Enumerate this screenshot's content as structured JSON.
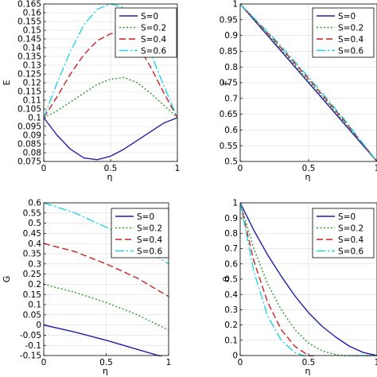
{
  "chart_data": [
    {
      "id": "E",
      "type": "line",
      "xlabel": "η",
      "ylabel": "E",
      "xlim": [
        0,
        1
      ],
      "ylim": [
        0.075,
        0.165
      ],
      "xticks": [
        0,
        0.5,
        1
      ],
      "xtick_labels": [
        "0",
        "0.5",
        "1"
      ],
      "yticks": [
        0.075,
        0.08,
        0.085,
        0.09,
        0.095,
        0.1,
        0.105,
        0.11,
        0.115,
        0.12,
        0.125,
        0.13,
        0.135,
        0.14,
        0.145,
        0.15,
        0.155,
        0.16,
        0.165
      ],
      "ytick_labels": [
        "0.075",
        "0.08",
        "0.085",
        "0.09",
        "0.095",
        "0.1",
        "0.105",
        "0.11",
        "0.115",
        "0.12",
        "0.125",
        "0.13",
        "0.135",
        "0.14",
        "0.145",
        "0.15",
        "0.155",
        "0.16",
        "0.165"
      ],
      "grid": true,
      "legend": "top-right",
      "x": [
        0,
        0.1,
        0.2,
        0.3,
        0.4,
        0.5,
        0.6,
        0.7,
        0.8,
        0.9,
        1
      ],
      "series": [
        {
          "name": "S=0",
          "values": [
            0.1,
            0.09,
            0.082,
            0.077,
            0.076,
            0.078,
            0.082,
            0.087,
            0.092,
            0.097,
            0.1
          ]
        },
        {
          "name": "S=0.2",
          "values": [
            0.1,
            0.104,
            0.109,
            0.114,
            0.119,
            0.122,
            0.123,
            0.12,
            0.114,
            0.107,
            0.1
          ]
        },
        {
          "name": "S=0.4",
          "values": [
            0.1,
            0.112,
            0.125,
            0.136,
            0.144,
            0.148,
            0.149,
            0.142,
            0.129,
            0.114,
            0.1
          ]
        },
        {
          "name": "S=0.6",
          "values": [
            0.1,
            0.12,
            0.138,
            0.153,
            0.162,
            0.165,
            0.163,
            0.154,
            0.137,
            0.118,
            0.1
          ]
        }
      ]
    },
    {
      "id": "F",
      "type": "line",
      "xlabel": "η",
      "ylabel": "F",
      "xlim": [
        0,
        1
      ],
      "ylim": [
        0.5,
        1
      ],
      "xticks": [
        0,
        0.5,
        1
      ],
      "xtick_labels": [
        "0",
        "0.5",
        "1"
      ],
      "yticks": [
        0.5,
        0.55,
        0.6,
        0.65,
        0.7,
        0.75,
        0.8,
        0.85,
        0.9,
        0.95,
        1
      ],
      "ytick_labels": [
        "0.5",
        "0.55",
        "0.6",
        "0.65",
        "0.7",
        "0.75",
        "0.8",
        "0.85",
        "0.9",
        "0.95",
        "1"
      ],
      "grid": true,
      "legend": "top-right",
      "x": [
        0,
        0.25,
        0.5,
        0.75,
        1
      ],
      "series": [
        {
          "name": "S=0",
          "values": [
            1,
            0.875,
            0.75,
            0.625,
            0.5
          ]
        },
        {
          "name": "S=0.2",
          "values": [
            1,
            0.88,
            0.756,
            0.63,
            0.5
          ]
        },
        {
          "name": "S=0.4",
          "values": [
            1,
            0.885,
            0.762,
            0.635,
            0.5
          ]
        },
        {
          "name": "S=0.6",
          "values": [
            1,
            0.89,
            0.768,
            0.64,
            0.5
          ]
        }
      ]
    },
    {
      "id": "G",
      "type": "line",
      "xlabel": "η",
      "ylabel": "G",
      "xlim": [
        0,
        1
      ],
      "ylim": [
        -0.15,
        0.6
      ],
      "xticks": [
        0,
        0.5,
        1
      ],
      "xtick_labels": [
        "0",
        "0.5",
        "1"
      ],
      "yticks": [
        -0.15,
        -0.1,
        -0.05,
        0,
        0.05,
        0.1,
        0.15,
        0.2,
        0.25,
        0.3,
        0.35,
        0.4,
        0.45,
        0.5,
        0.55,
        0.6
      ],
      "ytick_labels": [
        "-0.15",
        "-0.1",
        "-0.05",
        "0",
        "0.05",
        "0.1",
        "0.15",
        "0.2",
        "0.25",
        "0.3",
        "0.35",
        "0.4",
        "0.45",
        "0.5",
        "0.55",
        "0.6"
      ],
      "grid": true,
      "legend": "top-right",
      "x": [
        0,
        0.25,
        0.5,
        0.75,
        1
      ],
      "series": [
        {
          "name": "S=0",
          "values": [
            0,
            -0.035,
            -0.075,
            -0.12,
            -0.165
          ]
        },
        {
          "name": "S=0.2",
          "values": [
            0.2,
            0.16,
            0.11,
            0.05,
            -0.025
          ]
        },
        {
          "name": "S=0.4",
          "values": [
            0.4,
            0.36,
            0.3,
            0.23,
            0.14
          ]
        },
        {
          "name": "S=0.6",
          "values": [
            0.6,
            0.55,
            0.48,
            0.4,
            0.3
          ]
        }
      ]
    },
    {
      "id": "theta",
      "type": "line",
      "xlabel": "η",
      "ylabel": "θ",
      "xlim": [
        0,
        1
      ],
      "ylim": [
        0,
        1
      ],
      "xticks": [
        0,
        0.5,
        1
      ],
      "xtick_labels": [
        "0",
        "0.5",
        "1"
      ],
      "yticks": [
        0,
        0.1,
        0.2,
        0.3,
        0.4,
        0.5,
        0.6,
        0.7,
        0.8,
        0.9,
        1
      ],
      "ytick_labels": [
        "0",
        "0.1",
        "0.2",
        "0.3",
        "0.4",
        "0.5",
        "0.6",
        "0.7",
        "0.8",
        "0.9",
        "1"
      ],
      "grid": true,
      "legend": "top-right",
      "x": [
        0,
        0.1,
        0.2,
        0.3,
        0.4,
        0.5,
        0.6,
        0.7,
        0.8,
        0.9,
        1
      ],
      "series": [
        {
          "name": "S=0",
          "values": [
            1,
            0.82,
            0.66,
            0.52,
            0.39,
            0.28,
            0.19,
            0.12,
            0.06,
            0.02,
            0
          ]
        },
        {
          "name": "S=0.2",
          "values": [
            1,
            0.7,
            0.47,
            0.3,
            0.17,
            0.08,
            0.03,
            0.005,
            -0.005,
            -0.005,
            0
          ]
        },
        {
          "name": "S=0.4",
          "values": [
            1,
            0.62,
            0.35,
            0.17,
            0.06,
            0.0,
            -0.02,
            -0.02,
            -0.01,
            -0.003,
            0
          ]
        },
        {
          "name": "S=0.6",
          "values": [
            1,
            0.55,
            0.26,
            0.1,
            0.02,
            -0.015,
            -0.02,
            -0.015,
            -0.008,
            -0.003,
            0
          ]
        }
      ]
    }
  ],
  "colors": {
    "S=0": "#1f1fa8",
    "S=0.2": "#2e9a2e",
    "S=0.4": "#cc2020",
    "S=0.6": "#22d3e6",
    "grid": "#dcdcdc",
    "axis": "#000000"
  }
}
